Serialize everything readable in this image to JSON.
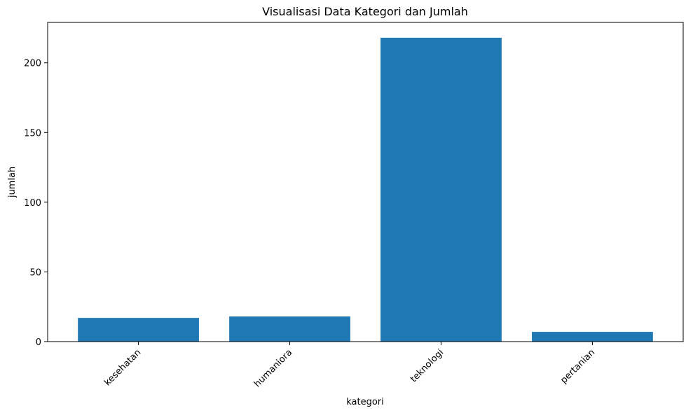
{
  "chart_data": {
    "type": "bar",
    "title": "Visualisasi Data Kategori dan Jumlah",
    "xlabel": "kategori",
    "ylabel": "jumlah",
    "categories": [
      "kesehatan",
      "humaniora",
      "teknologi",
      "pertanian"
    ],
    "values": [
      17,
      18,
      218,
      7
    ],
    "ylim": [
      0,
      229
    ],
    "yticks": [
      0,
      50,
      100,
      150,
      200
    ],
    "grid": false,
    "bar_color": "#1f77b4",
    "xtick_rotation_deg": 45
  }
}
